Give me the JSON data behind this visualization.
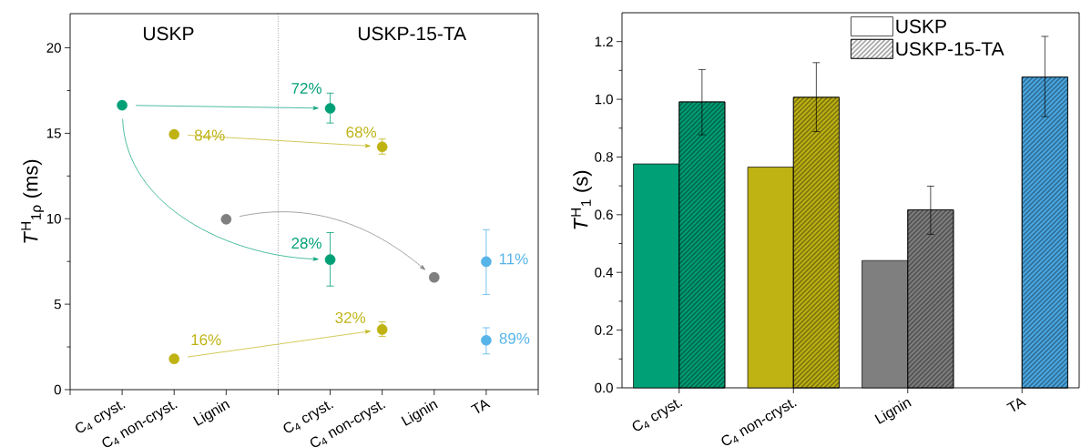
{
  "chart_data": [
    {
      "type": "scatter",
      "ylabel": "*T*$^{H}$$_{1ρ}$ (ms)",
      "categories": [
        null,
        "C$_{4}$ cryst.",
        "C$_{4}$ non-cryst.",
        "Lignin",
        null,
        "C$_{4}$ cryst.",
        "C$_{4}$ non-cryst.",
        "Lignin",
        "TA",
        null
      ],
      "ylim": [
        0,
        22
      ],
      "yticks": [
        0,
        5,
        10,
        15,
        20
      ],
      "marker": "circle",
      "annotations": [
        "USKP",
        "USKP-15-TA",
        "72%",
        "84%",
        "68%",
        "28%",
        "16%",
        "32%",
        "11%",
        "89%"
      ],
      "series": [
        {
          "color": "#00A077",
          "values": [
            null,
            16.64,
            null,
            null,
            null,
            16.46,
            null,
            null,
            null,
            null
          ],
          "errors": [
            null,
            null,
            null,
            null,
            null,
            [
              15.6,
              17.35
            ],
            null,
            null,
            null,
            null
          ]
        },
        {
          "color": "#00A077",
          "values": [
            null,
            null,
            null,
            null,
            null,
            7.61,
            null,
            null,
            null,
            null
          ],
          "errors": [
            null,
            null,
            null,
            null,
            null,
            [
              6.06,
              9.19
            ],
            null,
            null,
            null,
            null
          ]
        },
        {
          "color": "#BFB314",
          "values": [
            null,
            null,
            14.94,
            null,
            null,
            null,
            14.21,
            null,
            null,
            null
          ],
          "errors": [
            null,
            null,
            null,
            null,
            null,
            null,
            [
              13.78,
              14.66
            ],
            null,
            null,
            null
          ]
        },
        {
          "color": "#BFB314",
          "values": [
            null,
            null,
            1.8,
            null,
            null,
            null,
            3.52,
            null,
            null,
            null
          ],
          "errors": [
            null,
            null,
            null,
            null,
            null,
            null,
            [
              3.11,
              3.97
            ],
            null,
            null,
            null
          ]
        },
        {
          "color": "#7F7F7F",
          "values": [
            null,
            null,
            null,
            9.97,
            null,
            null,
            null,
            6.57,
            null,
            null
          ]
        },
        {
          "color": "#56B4E9",
          "values": [
            null,
            null,
            null,
            null,
            null,
            null,
            null,
            null,
            7.49,
            null
          ],
          "errors": [
            null,
            null,
            null,
            null,
            null,
            null,
            null,
            null,
            [
              5.57,
              9.36
            ],
            null
          ]
        },
        {
          "color": "#56B4E9",
          "values": [
            null,
            null,
            null,
            null,
            null,
            null,
            null,
            null,
            2.89,
            null
          ],
          "errors": [
            null,
            null,
            null,
            null,
            null,
            null,
            null,
            null,
            [
              2.09,
              3.62
            ],
            null
          ]
        }
      ]
    },
    {
      "type": "bar",
      "ylabel": "*T*$^{H}$$_{1}$ (s)",
      "categories": [
        "C$_{4}$ cryst.",
        "C$_{4}$ non-cryst.",
        "Lignin",
        "TA"
      ],
      "ylim": [
        0,
        1.3
      ],
      "yticks": [
        {
          "value": 0,
          "label": "0.0"
        },
        {
          "value": 0.2,
          "label": "0.2"
        },
        {
          "value": 0.4,
          "label": "0.4"
        },
        {
          "value": 0.6,
          "label": "0.6"
        },
        {
          "value": 0.8,
          "label": "0.8"
        },
        {
          "value": 1.0,
          "label": "1.0"
        },
        {
          "value": 1.2,
          "label": "1.2"
        }
      ],
      "legend": "top",
      "series": [
        {
          "name": "USKP",
          "colors": [
            "#00A077",
            "#BFB314",
            "#7F7F7F",
            null
          ],
          "values": [
            0.776,
            0.765,
            0.441,
            null
          ]
        },
        {
          "name": "USKP-15-TA",
          "colors": [
            "#00A077",
            "#BFB314",
            "#7F7F7F",
            "#4AA9E5"
          ],
          "values": [
            0.991,
            1.007,
            0.617,
            1.077
          ],
          "errors": [
            [
              0.877,
              1.103
            ],
            [
              0.888,
              1.127
            ],
            [
              0.532,
              0.699
            ],
            [
              0.94,
              1.218
            ]
          ]
        }
      ]
    }
  ]
}
